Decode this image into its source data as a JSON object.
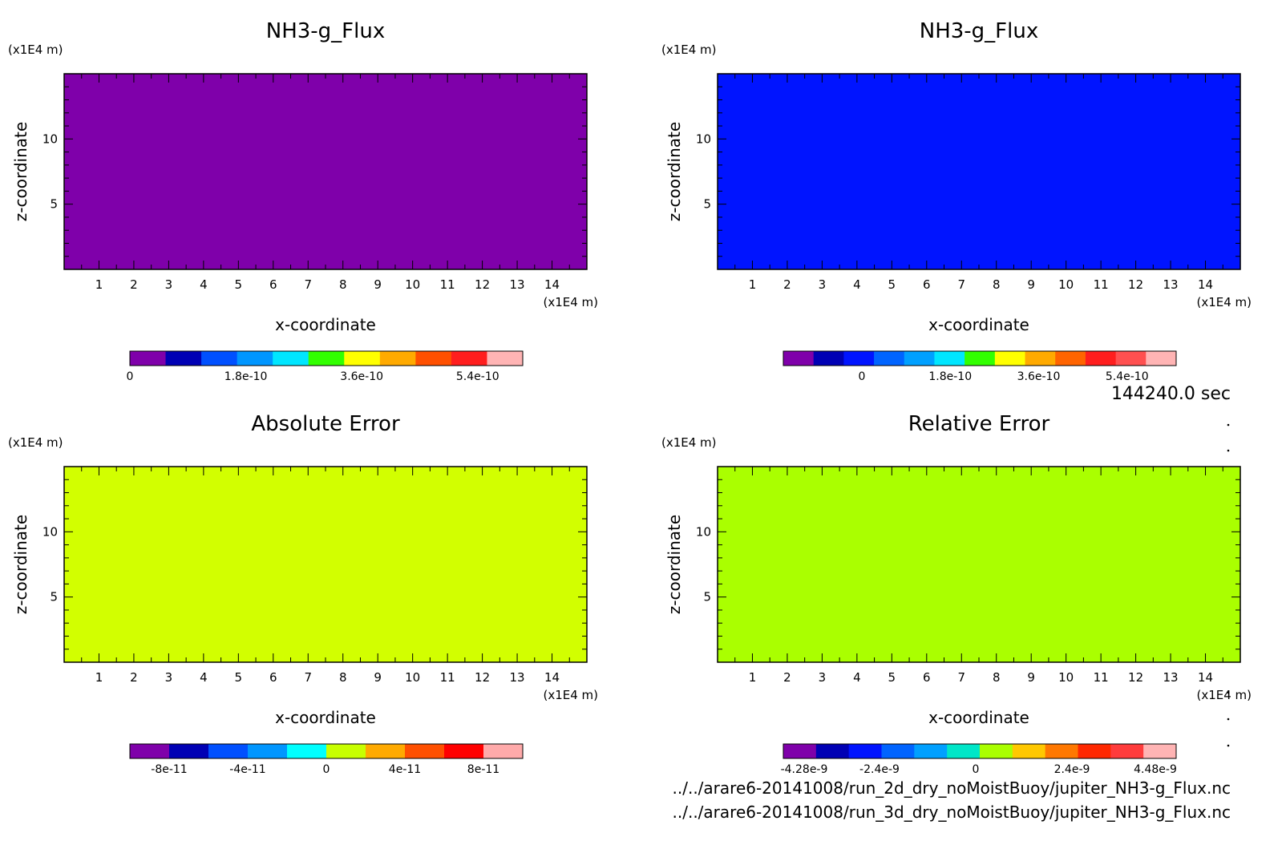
{
  "time_label": "144240.0 sec",
  "file_paths": [
    "../../arare6-20141008/run_2d_dry_noMoistBuoy/jupiter_NH3-g_Flux.nc",
    "../../arare6-20141008/run_3d_dry_noMoistBuoy/jupiter_NH3-g_Flux.nc"
  ],
  "chart_data": [
    {
      "type": "heatmap",
      "title": "NH3-g_Flux",
      "xlabel": "x-coordinate",
      "ylabel": "z-coordinate",
      "x_unit": "(x1E4 m)",
      "y_unit": "(x1E4 m)",
      "xlim": [
        0,
        15
      ],
      "ylim": [
        0,
        15
      ],
      "x_ticks": [
        "1",
        "2",
        "3",
        "4",
        "5",
        "6",
        "7",
        "8",
        "9",
        "10",
        "11",
        "12",
        "13",
        "14"
      ],
      "y_ticks": [
        "5",
        "10"
      ],
      "fill_color": "#7f00aa",
      "colorbar": {
        "colors": [
          "#7f00aa",
          "#0000b4",
          "#0050ff",
          "#0096ff",
          "#00e6ff",
          "#32ff00",
          "#ffff00",
          "#ffaa00",
          "#ff5000",
          "#ff1e1e",
          "#ffb4b4"
        ],
        "ticks": [
          {
            "value": 0,
            "label": "0"
          },
          {
            "value": 1.8e-10,
            "label": "1.8e-10"
          },
          {
            "value": 3.6e-10,
            "label": "3.6e-10"
          },
          {
            "value": 5.4e-10,
            "label": "5.4e-10"
          }
        ],
        "min": 0,
        "max": 6.1e-10
      }
    },
    {
      "type": "heatmap",
      "title": "NH3-g_Flux",
      "xlabel": "x-coordinate",
      "ylabel": "z-coordinate",
      "x_unit": "(x1E4 m)",
      "y_unit": "(x1E4 m)",
      "xlim": [
        0,
        15
      ],
      "ylim": [
        0,
        15
      ],
      "x_ticks": [
        "1",
        "2",
        "3",
        "4",
        "5",
        "6",
        "7",
        "8",
        "9",
        "10",
        "11",
        "12",
        "13",
        "14"
      ],
      "y_ticks": [
        "5",
        "10"
      ],
      "fill_color": "#0014ff",
      "colorbar": {
        "colors": [
          "#7f00aa",
          "#0000b4",
          "#0014ff",
          "#0064ff",
          "#00a0ff",
          "#00e6ff",
          "#32ff00",
          "#ffff00",
          "#ffaa00",
          "#ff6400",
          "#ff1e1e",
          "#ff5050",
          "#ffb4b4"
        ],
        "ticks": [
          {
            "value": 0,
            "label": "0"
          },
          {
            "value": 1.8e-10,
            "label": "1.8e-10"
          },
          {
            "value": 3.6e-10,
            "label": "3.6e-10"
          },
          {
            "value": 5.4e-10,
            "label": "5.4e-10"
          }
        ],
        "min": -1.6e-10,
        "max": 6.4e-10
      }
    },
    {
      "type": "heatmap",
      "title": "Absolute Error",
      "xlabel": "x-coordinate",
      "ylabel": "z-coordinate",
      "x_unit": "(x1E4 m)",
      "y_unit": "(x1E4 m)",
      "xlim": [
        0,
        15
      ],
      "ylim": [
        0,
        15
      ],
      "x_ticks": [
        "1",
        "2",
        "3",
        "4",
        "5",
        "6",
        "7",
        "8",
        "9",
        "10",
        "11",
        "12",
        "13",
        "14"
      ],
      "y_ticks": [
        "5",
        "10"
      ],
      "fill_color": "#d2ff00",
      "colorbar": {
        "colors": [
          "#7f00aa",
          "#0000b4",
          "#0050ff",
          "#0096ff",
          "#00ffff",
          "#c8ff00",
          "#ffaa00",
          "#ff5000",
          "#ff0000",
          "#ffaaaa"
        ],
        "ticks": [
          {
            "value": -8e-11,
            "label": "-8e-11"
          },
          {
            "value": -4e-11,
            "label": "-4e-11"
          },
          {
            "value": 0,
            "label": "0"
          },
          {
            "value": 4e-11,
            "label": "4e-11"
          },
          {
            "value": 8e-11,
            "label": "8e-11"
          }
        ],
        "min": -1e-10,
        "max": 1e-10
      }
    },
    {
      "type": "heatmap",
      "title": "Relative Error",
      "xlabel": "x-coordinate",
      "ylabel": "z-coordinate",
      "x_unit": "(x1E4 m)",
      "y_unit": "(x1E4 m)",
      "xlim": [
        0,
        15
      ],
      "ylim": [
        0,
        15
      ],
      "x_ticks": [
        "1",
        "2",
        "3",
        "4",
        "5",
        "6",
        "7",
        "8",
        "9",
        "10",
        "11",
        "12",
        "13",
        "14"
      ],
      "y_ticks": [
        "5",
        "10"
      ],
      "fill_color": "#aaff00",
      "colorbar": {
        "colors": [
          "#7f00aa",
          "#0000b4",
          "#0014ff",
          "#0064ff",
          "#00a0ff",
          "#00e6c8",
          "#aaff00",
          "#ffc800",
          "#ff7800",
          "#ff2800",
          "#ff3c3c",
          "#ffb4b4"
        ],
        "ticks": [
          {
            "value": -4.28e-09,
            "label": "-4.28e-9"
          },
          {
            "value": -2.4e-09,
            "label": "-2.4e-9"
          },
          {
            "value": 0,
            "label": "0"
          },
          {
            "value": 2.4e-09,
            "label": "2.4e-9"
          },
          {
            "value": 4.48e-09,
            "label": "4.48e-9"
          }
        ],
        "min": -4.8e-09,
        "max": 5e-09
      }
    }
  ]
}
